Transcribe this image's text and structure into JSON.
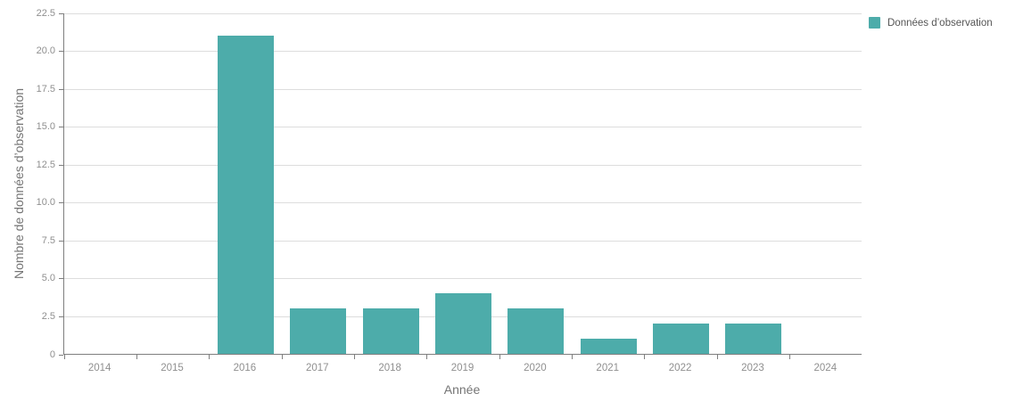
{
  "chart_data": {
    "type": "bar",
    "title": "",
    "categories": [
      "2014",
      "2015",
      "2016",
      "2017",
      "2018",
      "2019",
      "2020",
      "2021",
      "2022",
      "2023",
      "2024"
    ],
    "series": [
      {
        "name": "Données d’observation",
        "values": [
          0,
          0,
          21,
          3,
          3,
          4,
          3,
          1,
          2,
          2,
          0
        ]
      }
    ],
    "xlabel": "Année",
    "ylabel": "Nombre de données d’observation",
    "ylim": [
      0,
      22.5
    ],
    "ytick_labels": [
      "0",
      "2.5",
      "5.0",
      "7.5",
      "10.0",
      "12.5",
      "15.0",
      "17.5",
      "20.0",
      "22.5"
    ],
    "grid": true,
    "legend_position": "top-right"
  },
  "legend": {
    "label": "Données d’observation"
  },
  "colors": {
    "bar": "#4DACAA",
    "grid": "#dddddd",
    "axis": "#7f7f7f",
    "tick_label": "#8f8f8f",
    "axis_title": "#757575",
    "legend_text": "#555555",
    "background": "#ffffff"
  }
}
